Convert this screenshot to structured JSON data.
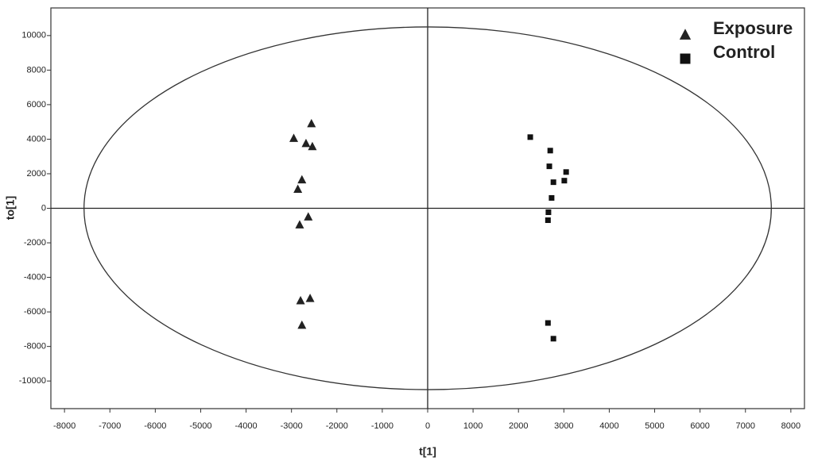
{
  "chart_data": {
    "type": "scatter",
    "x_label": "t[1]",
    "y_label": "to[1]",
    "xlim": [
      -8300,
      8300
    ],
    "ylim": [
      -11600,
      11600
    ],
    "xticks": [
      -8000,
      -7000,
      -6000,
      -5000,
      -4000,
      -3000,
      -2000,
      -1000,
      0,
      1000,
      2000,
      3000,
      4000,
      5000,
      6000,
      7000,
      8000
    ],
    "yticks": [
      -10000,
      -8000,
      -6000,
      -4000,
      -2000,
      0,
      2000,
      4000,
      6000,
      8000,
      10000
    ],
    "ellipse": {
      "rx": 7570,
      "ry": 10500
    },
    "zero_lines": true,
    "legend": "upper right",
    "series": [
      {
        "name": "Exposure",
        "marker": "triangle",
        "color": "#222222",
        "x": [
          -2560,
          -2950,
          -2680,
          -2540,
          -2770,
          -2860,
          -2630,
          -2820,
          -2800,
          -2590,
          -2770
        ],
        "values": [
          4900,
          4050,
          3750,
          3570,
          1650,
          1100,
          -500,
          -960,
          -5350,
          -5220,
          -6770
        ]
      },
      {
        "name": "Control",
        "marker": "square",
        "color": "#111111",
        "x": [
          2260,
          2700,
          2680,
          3050,
          2770,
          3010,
          2730,
          2660,
          2650,
          2650,
          2770
        ],
        "values": [
          4120,
          3340,
          2430,
          2100,
          1510,
          1600,
          600,
          -230,
          -690,
          -6640,
          -7550
        ]
      }
    ]
  }
}
